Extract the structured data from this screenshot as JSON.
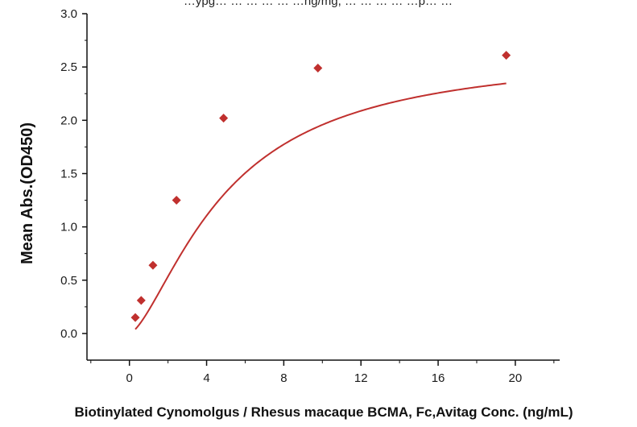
{
  "chart_data": {
    "type": "scatter",
    "top_text": "…ypg… … …  … … …ng/mg, … … … … …p… …",
    "xlabel": "Biotinylated Cynomolgus / Rhesus macaque BCMA, Fc,Avitag Conc. (ng/mL)",
    "ylabel": "Mean Abs.(OD450)",
    "xlim": [
      -2.2,
      22.3
    ],
    "ylim": [
      -0.25,
      3.0
    ],
    "x_ticks": [
      0,
      4,
      8,
      12,
      16,
      20
    ],
    "x_tick_labels": [
      "0",
      "4",
      "8",
      "12",
      "16",
      "20"
    ],
    "y_ticks": [
      0.0,
      0.5,
      1.0,
      1.5,
      2.0,
      2.5,
      3.0
    ],
    "y_tick_labels": [
      "0.0",
      "0.5",
      "1.0",
      "1.5",
      "2.0",
      "2.5",
      "3.0"
    ],
    "grid": false,
    "series": [
      {
        "marker": "diamond",
        "color": "#c0302e",
        "x": [
          0.305,
          0.61,
          1.22,
          2.44,
          4.88,
          9.77,
          19.53
        ],
        "y": [
          0.15,
          0.31,
          0.64,
          1.25,
          2.02,
          2.49,
          2.61
        ]
      }
    ],
    "fit_curve": {
      "type": "4PL",
      "color": "#c0302e",
      "params": {
        "A": 0.0,
        "D": 2.65,
        "C": 5.0,
        "B": 1.5
      }
    }
  }
}
